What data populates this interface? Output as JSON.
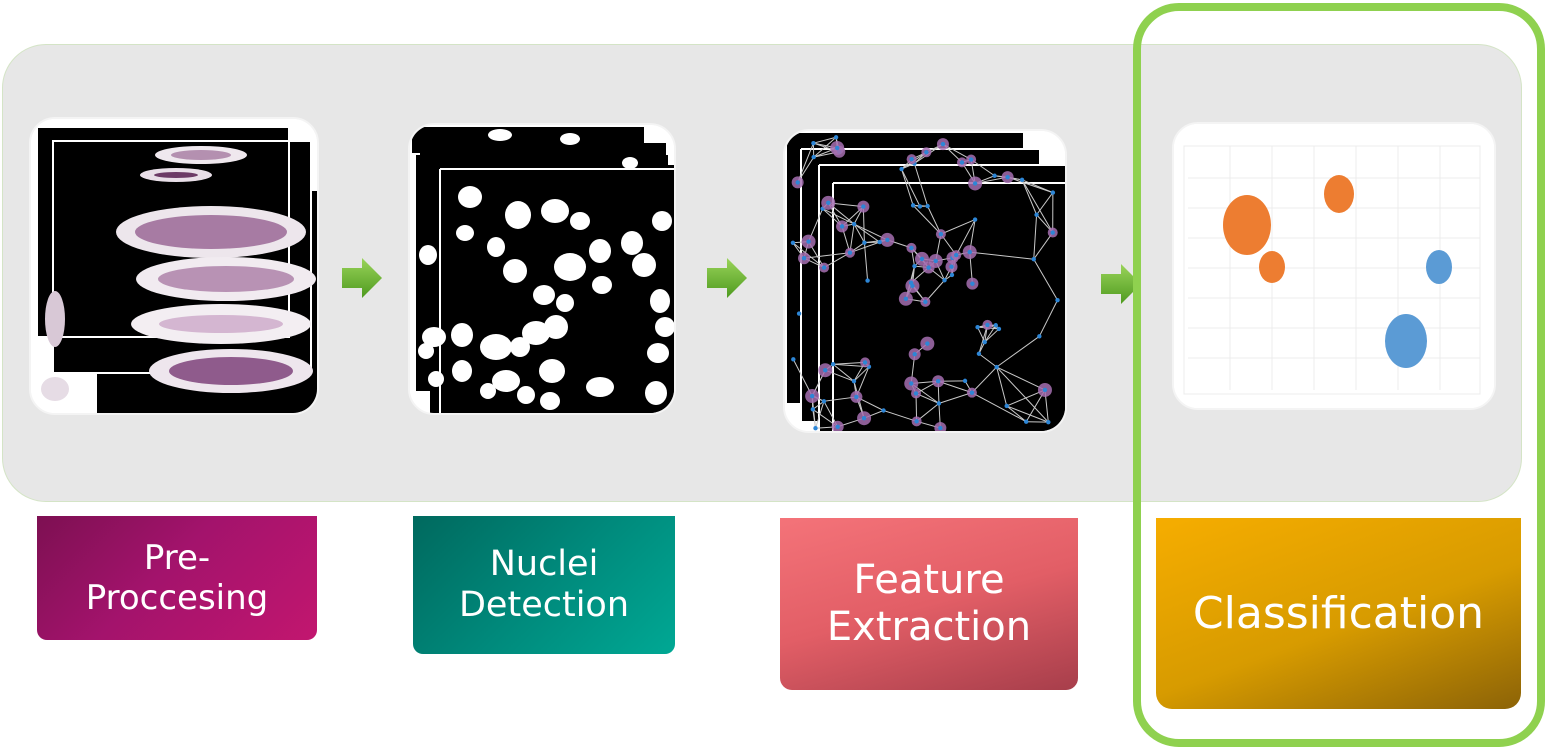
{
  "stages": [
    {
      "id": "pre-processing",
      "label": "Pre-\nProccesing"
    },
    {
      "id": "nuclei-detection",
      "label": "Nuclei\nDetection"
    },
    {
      "id": "feature-extraction",
      "label": "Feature\nExtraction"
    },
    {
      "id": "classification",
      "label": "Classification"
    }
  ],
  "colors": {
    "panel": "#e7e7e7",
    "highlight": "#8fd14f",
    "arrow": "#6fba2c",
    "pre": "#a3136c",
    "nuclei": "#00897b",
    "feature": "#e25e66",
    "classification": "#d79b00",
    "class_a": "#ed7d31",
    "class_b": "#5b9bd5"
  },
  "icons": [
    "tissue-slide-image",
    "binary-nuclei-mask-image",
    "delaunay-graph-image",
    "bubble-chart-image",
    "arrow-right-icon"
  ]
}
